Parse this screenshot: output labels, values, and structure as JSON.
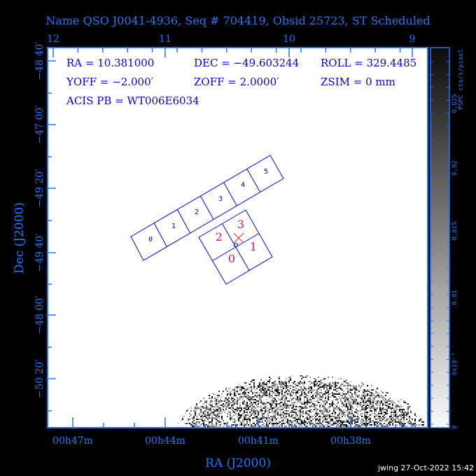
{
  "title": "Name QSO J0041-4936, Seq # 704419, Obsid 25723, ST Scheduled",
  "info": {
    "ra": "RA = 10.381000",
    "dec": "DEC = −49.603244",
    "roll": "ROLL = 329.4485",
    "yoff": "YOFF =  −2.000′",
    "zoff": "ZOFF =  2.0000′",
    "zsim": "ZSIM = 0 mm",
    "acis_pb": "ACIS PB = WT006E6034"
  },
  "top_axis_labels": [
    "12",
    "11",
    "10",
    "9"
  ],
  "bottom_axis_labels": [
    "00h47m",
    "00h44m",
    "00h41m",
    "00h38m"
  ],
  "left_axis_labels": [
    "−48 40′",
    "−47 00′",
    "−49 20′",
    "−49 40′",
    "−48 00′",
    "−50 20′"
  ],
  "xlabel": "RA (J2000)",
  "ylabel": "Dec (J2000)",
  "colorbar": {
    "label": "PSPC cts/s/pixel",
    "ticks": [
      "0.025",
      "0.02",
      "0.015",
      "0.01",
      "6x10⁻³",
      "0"
    ],
    "range": [
      0,
      0.028
    ],
    "colormap": "white-to-black"
  },
  "s_array_chips": [
    "0",
    "1",
    "2",
    "3",
    "4",
    "5"
  ],
  "i_array_chips": [
    "2",
    "3",
    "0",
    "1"
  ],
  "footer": "jwing 27-Oct-2022 15:42",
  "colors": {
    "axis": "#1e78ff",
    "text": "#0000e0",
    "chips": "#0000ff",
    "i_labels": "#e0106a",
    "aimpoint": "#ff0000"
  }
}
